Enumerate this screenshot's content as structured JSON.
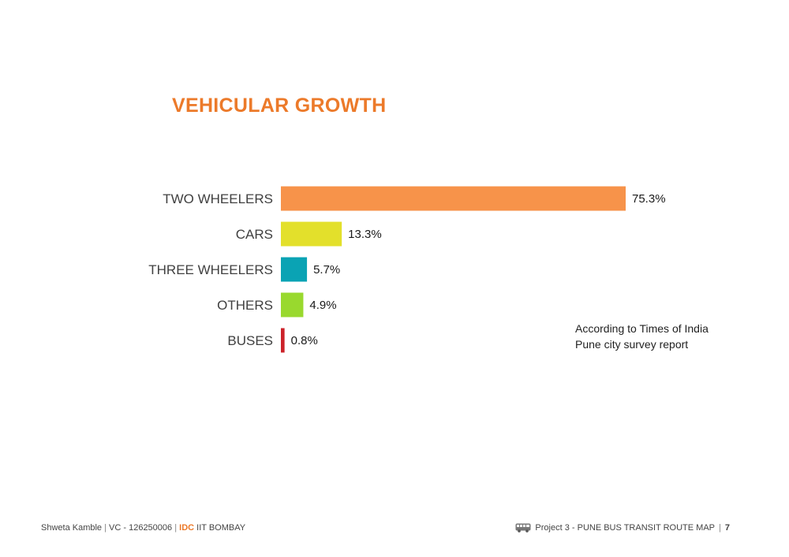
{
  "slide": {
    "title": "VEHICULAR GROWTH",
    "note_line1": "According to Times of India",
    "note_line2": "Pune city survey report"
  },
  "chart_data": {
    "type": "bar",
    "orientation": "horizontal",
    "title": "VEHICULAR GROWTH",
    "categories": [
      "TWO WHEELERS",
      "CARS",
      "THREE WHEELERS",
      "OTHERS",
      "BUSES"
    ],
    "values": [
      75.3,
      13.3,
      5.7,
      4.9,
      0.8
    ],
    "value_labels": [
      "75.3%",
      "13.3%",
      "5.7%",
      "4.9%",
      "0.8%"
    ],
    "colors": [
      "#f7934a",
      "#e3e02b",
      "#0aa3b4",
      "#99d92e",
      "#cc2229"
    ],
    "xlim": [
      0,
      75.3
    ],
    "grid": false,
    "legend": "none"
  },
  "footer": {
    "author": "Shweta Kamble",
    "sep": "|",
    "vc": "VC - 126250006",
    "idc": "IDC",
    "institute": "IIT BOMBAY",
    "project": "Project 3 - PUNE BUS TRANSIT ROUTE MAP",
    "page": "7",
    "icon": "bus-icon"
  }
}
